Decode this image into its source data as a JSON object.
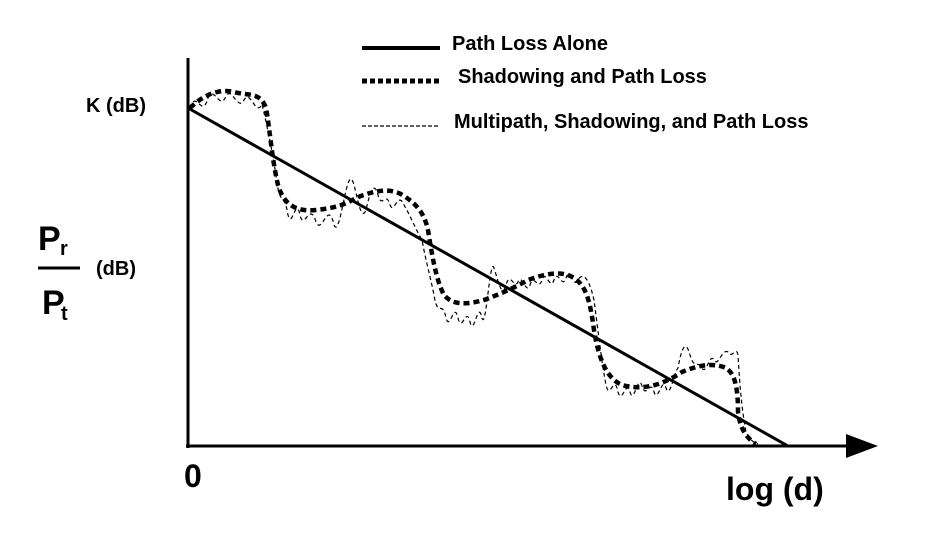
{
  "legend": [
    {
      "label": "Path Loss Alone",
      "style": "solid"
    },
    {
      "label": "Shadowing and Path Loss",
      "style": "thick-dotted"
    },
    {
      "label": "Multipath, Shadowing, and Path Loss",
      "style": "thin-dashed"
    }
  ],
  "axes": {
    "y_intercept_label": "K (dB)",
    "y_label": {
      "numerator": "P",
      "numerator_sub": "r",
      "denominator": "P",
      "denominator_sub": "t",
      "unit": "(dB)"
    },
    "origin_label": "0",
    "x_label": "log (d)"
  },
  "colors": {
    "ink": "#000000",
    "background": "#ffffff"
  }
}
